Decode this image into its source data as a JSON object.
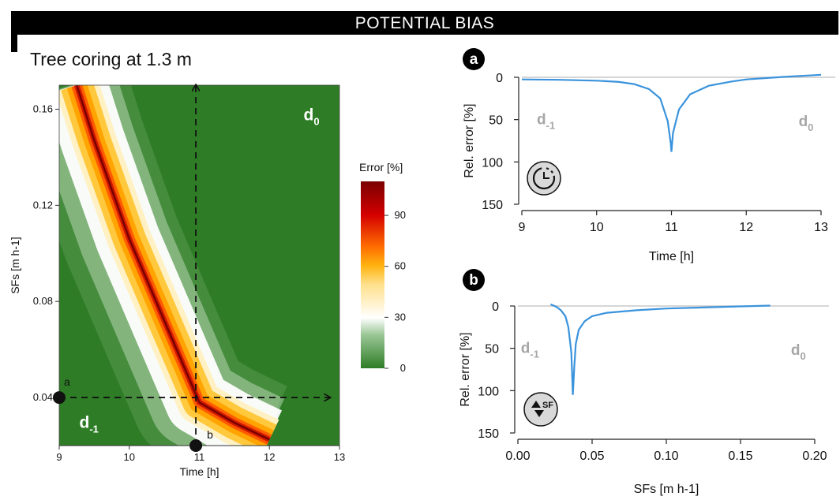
{
  "banner": {
    "title": "POTENTIAL BIAS"
  },
  "chart_data": [
    {
      "id": "heatmap",
      "type": "heatmap",
      "title": "Tree coring at 1.3 m",
      "xlabel": "Time [h]",
      "ylabel": "SFs [m h-1]",
      "xlim": [
        9,
        13
      ],
      "ylim": [
        0.02,
        0.17
      ],
      "xticks": [
        "9",
        "10",
        "11",
        "12",
        "13"
      ],
      "yticks": [
        "0.04",
        "0.08",
        "0.12",
        "0.16"
      ],
      "colorbar": {
        "title": "Error [%]",
        "range": [
          0,
          110
        ],
        "ticks": [
          "0",
          "30",
          "60",
          "90"
        ],
        "colors": [
          "#2e7d26",
          "#ffffff",
          "#ffb30f",
          "#ff6d00",
          "#d40000",
          "#7a0000"
        ]
      },
      "max_error_curve": [
        [
          9.25,
          0.17
        ],
        [
          9.5,
          0.147
        ],
        [
          10.0,
          0.106
        ],
        [
          10.5,
          0.072
        ],
        [
          11.0,
          0.038
        ],
        [
          11.5,
          0.0295
        ],
        [
          12.0,
          0.0225
        ]
      ],
      "regions": [
        {
          "label": "d",
          "subscript": "0",
          "x": 12.6,
          "y": 0.158
        },
        {
          "label": "d",
          "subscript": "-1",
          "x": 9.4,
          "y": 0.03
        }
      ],
      "markers": [
        {
          "label": "a",
          "x": 9.0,
          "y": 0.04
        },
        {
          "label": "b",
          "x": 10.95,
          "y": 0.02
        }
      ],
      "arrows": [
        {
          "from": [
            9.0,
            0.04
          ],
          "to": [
            13.0,
            0.04
          ]
        },
        {
          "from": [
            10.95,
            0.02
          ],
          "to": [
            10.95,
            0.17
          ]
        }
      ]
    },
    {
      "id": "panel-a",
      "type": "line",
      "panel_label": "a",
      "icon": "clock-icon",
      "xlabel": "Time [h]",
      "ylabel": "Rel. error [%]",
      "xlim": [
        9,
        13
      ],
      "ylim": [
        150,
        0
      ],
      "xticks": [
        "9",
        "10",
        "11",
        "12",
        "13"
      ],
      "yticks": [
        "0",
        "50",
        "100",
        "150"
      ],
      "regions": [
        {
          "label": "d",
          "subscript": "-1",
          "x": 9.2,
          "y": 50
        },
        {
          "label": "d",
          "subscript": "0",
          "x": 12.7,
          "y": 52
        }
      ],
      "series": [
        {
          "x": [
            9.0,
            9.5,
            10.0,
            10.3,
            10.5,
            10.7,
            10.85,
            10.95,
            10.99,
            11.0,
            11.02,
            11.1,
            11.25,
            11.5,
            11.8,
            12.0,
            12.5,
            13.0
          ],
          "y": [
            2.5,
            3.0,
            4.0,
            5.5,
            8.0,
            14.0,
            25.0,
            52.0,
            78.0,
            88.0,
            66.0,
            38.0,
            20.0,
            10.0,
            5.0,
            2.5,
            -0.5,
            -3.0
          ]
        }
      ]
    },
    {
      "id": "panel-b",
      "type": "line",
      "panel_label": "b",
      "icon": "sap-flow-icon",
      "icon_text": "SF",
      "xlabel": "SFs [m h-1]",
      "ylabel": "Rel. error [%]",
      "xlim": [
        0.0,
        0.2
      ],
      "ylim": [
        150,
        0
      ],
      "xticks": [
        "0.00",
        "0.05",
        "0.10",
        "0.15",
        "0.20"
      ],
      "yticks": [
        "0",
        "50",
        "100",
        "150"
      ],
      "regions": [
        {
          "label": "d",
          "subscript": "-1",
          "x": 0.002,
          "y": 50
        },
        {
          "label": "d",
          "subscript": "0",
          "x": 0.184,
          "y": 52
        }
      ],
      "series": [
        {
          "x": [
            0.022,
            0.026,
            0.029,
            0.032,
            0.034,
            0.036,
            0.037,
            0.038,
            0.039,
            0.041,
            0.045,
            0.05,
            0.06,
            0.08,
            0.1,
            0.12,
            0.15,
            0.17
          ],
          "y": [
            -2.0,
            1.0,
            5.0,
            12.0,
            25.0,
            55.0,
            105.0,
            72.0,
            45.0,
            28.0,
            18.0,
            12.0,
            8.0,
            5.0,
            3.0,
            2.0,
            0.5,
            -0.5
          ]
        }
      ]
    }
  ]
}
